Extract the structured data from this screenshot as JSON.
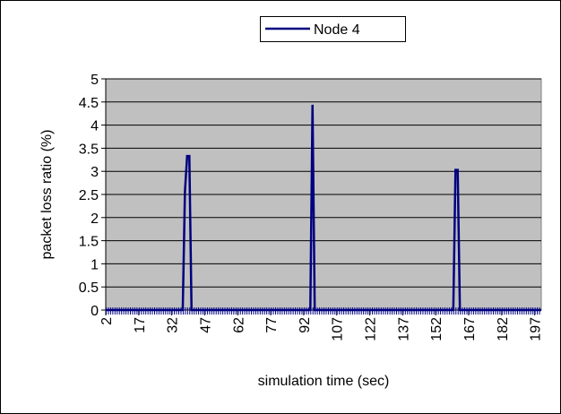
{
  "chart_data": {
    "type": "line",
    "xlabel": "simulation time (sec)",
    "ylabel": "packet loss ratio (%)",
    "x": [
      2,
      37,
      38,
      39,
      40,
      41,
      95,
      96,
      97,
      160,
      161,
      162,
      163,
      200
    ],
    "series": [
      {
        "name": "Node 4",
        "color": "#000080",
        "values": [
          0,
          0,
          2.56,
          3.33,
          3.33,
          0,
          0,
          4.44,
          0,
          0,
          3.03,
          3.03,
          0,
          0
        ]
      }
    ],
    "xlim": [
      2,
      200
    ],
    "xticks": [
      2,
      17,
      32,
      47,
      62,
      77,
      92,
      107,
      122,
      137,
      152,
      167,
      182,
      197
    ],
    "ylim": [
      0,
      5
    ],
    "yticks": [
      0,
      0.5,
      1,
      1.5,
      2,
      2.5,
      3,
      3.5,
      4,
      4.5,
      5
    ],
    "grid": true,
    "legend": "top"
  }
}
